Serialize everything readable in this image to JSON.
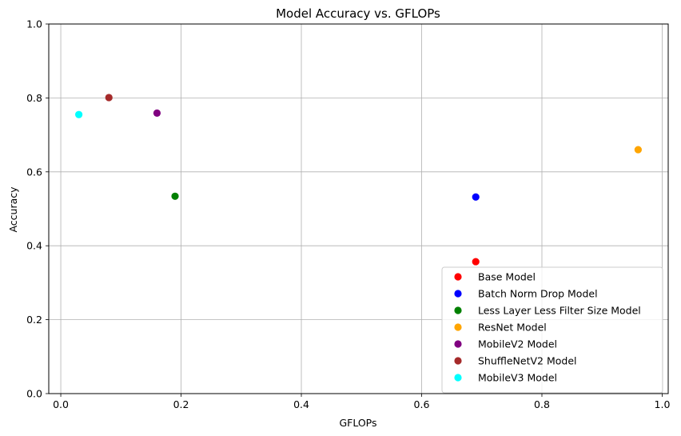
{
  "chart_data": {
    "type": "scatter",
    "title": "Model Accuracy vs. GFLOPs",
    "xlabel": "GFLOPs",
    "ylabel": "Accuracy",
    "xlim": [
      -0.02,
      1.01
    ],
    "ylim": [
      0.0,
      1.0
    ],
    "xticks": [
      0.0,
      0.2,
      0.4,
      0.6,
      0.8,
      1.0
    ],
    "xtick_labels": [
      "0.0",
      "0.2",
      "0.4",
      "0.6",
      "0.8",
      "1.0"
    ],
    "yticks": [
      0.0,
      0.2,
      0.4,
      0.6,
      0.8,
      1.0
    ],
    "ytick_labels": [
      "0.0",
      "0.2",
      "0.4",
      "0.6",
      "0.8",
      "1.0"
    ],
    "grid": true,
    "legend_position": "lower-right",
    "series": [
      {
        "name": "Base Model",
        "color": "#ff0000",
        "x": [
          0.69
        ],
        "y": [
          0.357
        ]
      },
      {
        "name": "Batch Norm Drop Model",
        "color": "#0000ff",
        "x": [
          0.69
        ],
        "y": [
          0.532
        ]
      },
      {
        "name": "Less Layer Less Filter Size Model",
        "color": "#008000",
        "x": [
          0.19
        ],
        "y": [
          0.534
        ]
      },
      {
        "name": "ResNet Model",
        "color": "#ffa500",
        "x": [
          0.96
        ],
        "y": [
          0.66
        ]
      },
      {
        "name": "MobileV2 Model",
        "color": "#800080",
        "x": [
          0.16
        ],
        "y": [
          0.759
        ]
      },
      {
        "name": "ShuffleNetV2 Model",
        "color": "#a52a2a",
        "x": [
          0.08
        ],
        "y": [
          0.801
        ]
      },
      {
        "name": "MobileV3 Model",
        "color": "#00ffff",
        "x": [
          0.03
        ],
        "y": [
          0.755
        ]
      }
    ]
  }
}
